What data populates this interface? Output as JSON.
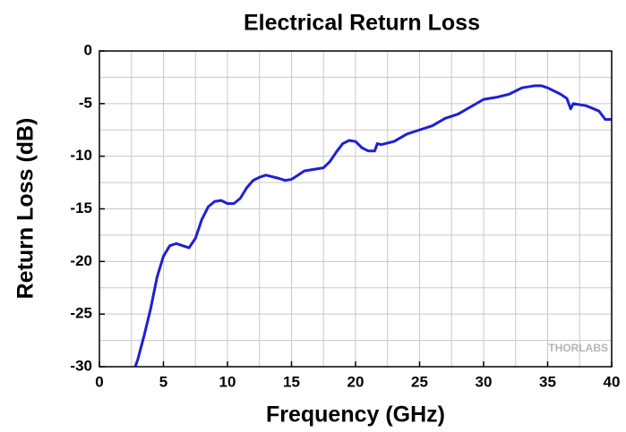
{
  "chart_data": {
    "type": "line",
    "title": "Electrical Return Loss",
    "x_label": "Frequency (GHz)",
    "y_label": "Return Loss (dB)",
    "annotation": "THORLABS",
    "x": [
      2.8,
      3.0,
      3.5,
      4,
      4.5,
      5,
      5.5,
      6,
      6.5,
      7,
      7.5,
      8,
      8.5,
      9,
      9.5,
      10,
      10.5,
      11,
      11.5,
      12,
      12.5,
      13,
      14,
      14.5,
      15,
      15.5,
      16,
      17,
      17.5,
      18,
      18.5,
      19,
      19.5,
      20,
      20.5,
      21,
      21.5,
      21.7,
      22,
      23,
      24,
      25,
      26,
      27,
      28,
      29,
      30,
      31,
      32,
      33,
      34,
      34.5,
      35,
      36,
      36.5,
      36.8,
      37,
      38,
      39,
      39.5,
      40
    ],
    "series": [
      {
        "name": "Return Loss",
        "color": "#1f1fd6",
        "values": [
          -30,
          -29.3,
          -27,
          -24.5,
          -21.5,
          -19.5,
          -18.5,
          -18.3,
          -18.5,
          -18.7,
          -17.8,
          -16,
          -14.8,
          -14.3,
          -14.2,
          -14.5,
          -14.5,
          -14,
          -13,
          -12.3,
          -12,
          -11.8,
          -12.1,
          -12.3,
          -12.2,
          -11.8,
          -11.4,
          -11.2,
          -11.1,
          -10.5,
          -9.6,
          -8.8,
          -8.5,
          -8.6,
          -9.2,
          -9.5,
          -9.5,
          -8.8,
          -8.9,
          -8.6,
          -7.9,
          -7.5,
          -7.1,
          -6.4,
          -6.0,
          -5.3,
          -4.6,
          -4.4,
          -4.1,
          -3.5,
          -3.3,
          -3.3,
          -3.5,
          -4.1,
          -4.5,
          -5.5,
          -5,
          -5.2,
          -5.7,
          -6.5,
          -6.5
        ]
      }
    ],
    "xlim": [
      0,
      40
    ],
    "ylim": [
      -30,
      0
    ],
    "xticks": [
      0,
      5,
      10,
      15,
      20,
      25,
      30,
      35,
      40
    ],
    "yticks": [
      -30,
      -25,
      -20,
      -15,
      -10,
      -5,
      0
    ],
    "xminorticks": [
      2.5,
      7.5,
      12.5,
      17.5,
      22.5,
      27.5,
      32.5,
      37.5
    ],
    "yminorticks": [
      -27.5,
      -22.5,
      -17.5,
      -12.5,
      -7.5,
      -2.5
    ],
    "grid": true
  }
}
